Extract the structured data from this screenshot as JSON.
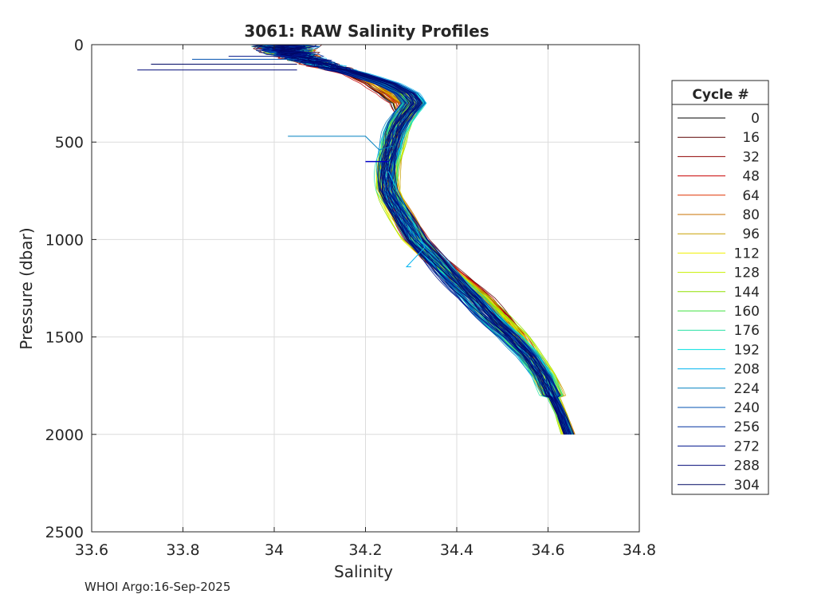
{
  "chart_data": {
    "type": "line",
    "title": "3061: RAW Salinity Profiles",
    "xlabel": "Salinity",
    "ylabel": "Pressure (dbar)",
    "xlim": [
      33.6,
      34.8
    ],
    "ylim": [
      0,
      2500
    ],
    "y_reversed": true,
    "xticks": [
      33.6,
      33.8,
      34,
      34.2,
      34.4,
      34.6,
      34.8
    ],
    "xtick_labels": [
      "33.6",
      "33.8",
      "34",
      "34.2",
      "34.4",
      "34.6",
      "34.8"
    ],
    "yticks": [
      0,
      500,
      1000,
      1500,
      2000,
      2500
    ],
    "ytick_labels": [
      "0",
      "500",
      "1000",
      "1500",
      "2000",
      "2500"
    ],
    "grid": true,
    "legend_title": "Cycle #",
    "legend_position": "right",
    "colormap": "jet",
    "footer": "WHOI Argo:16-Sep-2025",
    "series": [
      {
        "name": "0",
        "color": "#000000"
      },
      {
        "name": "16",
        "color": "#5a0000"
      },
      {
        "name": "32",
        "color": "#900000"
      },
      {
        "name": "48",
        "color": "#c80000"
      },
      {
        "name": "64",
        "color": "#e03000"
      },
      {
        "name": "80",
        "color": "#c87000"
      },
      {
        "name": "96",
        "color": "#c8a000"
      },
      {
        "name": "112",
        "color": "#f0f000"
      },
      {
        "name": "128",
        "color": "#c8f000"
      },
      {
        "name": "144",
        "color": "#90e000"
      },
      {
        "name": "160",
        "color": "#40e040"
      },
      {
        "name": "176",
        "color": "#20e0a0"
      },
      {
        "name": "192",
        "color": "#00e0e0"
      },
      {
        "name": "208",
        "color": "#00b4f0"
      },
      {
        "name": "224",
        "color": "#0080c0"
      },
      {
        "name": "240",
        "color": "#0050b0"
      },
      {
        "name": "256",
        "color": "#0030a0"
      },
      {
        "name": "272",
        "color": "#00148c"
      },
      {
        "name": "288",
        "color": "#000a78"
      },
      {
        "name": "304",
        "color": "#000864"
      }
    ],
    "mean_profile": {
      "pressure": [
        0,
        50,
        100,
        150,
        200,
        250,
        300,
        350,
        400,
        450,
        500,
        550,
        600,
        650,
        700,
        750,
        800,
        900,
        1000,
        1100,
        1200,
        1300,
        1400,
        1500,
        1600,
        1700,
        1800,
        1900,
        2000
      ],
      "salinity": [
        34.02,
        34.04,
        34.1,
        34.18,
        34.24,
        34.28,
        34.3,
        34.29,
        34.275,
        34.265,
        34.26,
        34.255,
        34.25,
        34.248,
        34.248,
        34.25,
        34.26,
        34.285,
        34.31,
        34.35,
        34.4,
        34.45,
        34.49,
        34.53,
        34.56,
        34.59,
        34.61,
        34.63,
        34.645
      ]
    }
  }
}
